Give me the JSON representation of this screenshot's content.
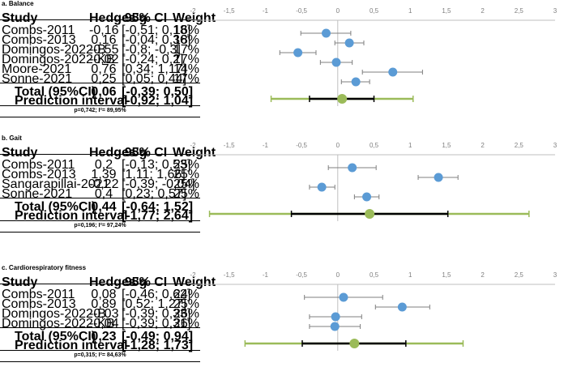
{
  "colors": {
    "study_marker": "#5b9bd5",
    "pooled_marker": "#9bbb59",
    "prediction_line": "#9bbb59",
    "ci_line": "#7f7f7f",
    "pooled_ci_line": "#000000"
  },
  "columns": {
    "study": "Study",
    "hedges": "Hedges'g",
    "ci": "95% CI",
    "weight": "Weight"
  },
  "chart_data": [
    {
      "type": "forest",
      "title": "a. Balance",
      "xlim": [
        -2,
        3
      ],
      "xticks": [
        "-2",
        "-1,5",
        "-1",
        "-0,5",
        "0",
        "0,5",
        "1",
        "1,5",
        "2",
        "2,5",
        "3"
      ],
      "studies": [
        {
          "name": "Combs-2011",
          "g": -0.16,
          "lo": -0.51,
          "hi": 0.18,
          "g_label": "-0,16",
          "ci_label": "[-0,51; 0,18]",
          "weight": "16%"
        },
        {
          "name": "Combs-2013",
          "g": 0.16,
          "lo": -0.04,
          "hi": 0.36,
          "g_label": "0,16",
          "ci_label": "[-0,04; 0,36]",
          "weight": "18%"
        },
        {
          "name": "Domingos-2022-B",
          "g": -0.55,
          "lo": -0.8,
          "hi": -0.3,
          "g_label": "-0,55",
          "ci_label": "[-0,8; -0,3]",
          "weight": "17%"
        },
        {
          "name": "Domingos-2022-KB",
          "g": -0.02,
          "lo": -0.24,
          "hi": 0.2,
          "g_label": "-0,02",
          "ci_label": "[-0,24; 0,2]",
          "weight": "17%"
        },
        {
          "name": "Moore-2021",
          "g": 0.76,
          "lo": 0.34,
          "hi": 1.17,
          "g_label": "0,76",
          "ci_label": "[0,34; 1,17]",
          "weight": "14%"
        },
        {
          "name": "Sonne-2021",
          "g": 0.25,
          "lo": 0.05,
          "hi": 0.44,
          "g_label": "0,25",
          "ci_label": "[0,05; 0,44]",
          "weight": "17%"
        }
      ],
      "total": {
        "label": "Total (95%CI)",
        "g": 0.06,
        "lo": -0.39,
        "hi": 0.5,
        "g_label": "0,06",
        "ci_label": "[-0,39; 0,50]"
      },
      "prediction": {
        "label": "Prediction interval",
        "lo": -0.92,
        "hi": 1.04,
        "ci_label": "[-0,92; 1,04]"
      },
      "heterogeneity": "p=0,742; I²= 89,95%"
    },
    {
      "type": "forest",
      "title": "b. Gait",
      "xlim": [
        -2,
        3
      ],
      "xticks": [
        "-2",
        "-1,5",
        "-1",
        "-0,5",
        "0",
        "0,5",
        "1",
        "1,5",
        "2",
        "2,5",
        "3"
      ],
      "studies": [
        {
          "name": "Combs-2011",
          "g": 0.2,
          "lo": -0.13,
          "hi": 0.53,
          "g_label": "0,2",
          "ci_label": "[-0,13; 0,53]",
          "weight": "25%"
        },
        {
          "name": "Combs-2013",
          "g": 1.39,
          "lo": 1.11,
          "hi": 1.66,
          "g_label": "1,39",
          "ci_label": "[1,11; 1,66]",
          "weight": "25%"
        },
        {
          "name": "Sangarapillai-2021",
          "g": -0.22,
          "lo": -0.39,
          "hi": -0.04,
          "g_label": "-0,22",
          "ci_label": "[-0,39; -0,04]",
          "weight": "25%"
        },
        {
          "name": "Sonne-2021",
          "g": 0.4,
          "lo": 0.23,
          "hi": 0.57,
          "g_label": "0,4",
          "ci_label": "[0,23; 0,57]",
          "weight": "25%"
        }
      ],
      "total": {
        "label": "Total (95%CI)",
        "g": 0.44,
        "lo": -0.64,
        "hi": 1.52,
        "g_label": "0,44",
        "ci_label": "[-0,64; 1,52]"
      },
      "prediction": {
        "label": "Prediction interval",
        "lo": -1.77,
        "hi": 2.64,
        "ci_label": "[-1,77; 2,64]"
      },
      "heterogeneity": "p=0,196; I²= 97,24%"
    },
    {
      "type": "forest",
      "title": "c. Cardiorespiratory fitness",
      "xlim": [
        -2,
        3
      ],
      "xticks": [
        "-2",
        "-1,5",
        "-1",
        "-0,5",
        "0",
        "0,5",
        "1",
        "1,5",
        "2",
        "2,5",
        "3"
      ],
      "studies": [
        {
          "name": "Combs-2011",
          "g": 0.08,
          "lo": -0.46,
          "hi": 0.62,
          "g_label": "0,08",
          "ci_label": "[-0,46; 0,62]",
          "weight": "24%"
        },
        {
          "name": "Combs-2013",
          "g": 0.89,
          "lo": 0.52,
          "hi": 1.27,
          "g_label": "0,89",
          "ci_label": "[0,52; 1,27]",
          "weight": "25%"
        },
        {
          "name": "Domingos-2022-B",
          "g": -0.03,
          "lo": -0.39,
          "hi": 0.33,
          "g_label": "-0,03",
          "ci_label": "[-0,39; 0,33]",
          "weight": "26%"
        },
        {
          "name": "Domingos-2022-KB",
          "g": -0.04,
          "lo": -0.39,
          "hi": 0.31,
          "g_label": "-0,04",
          "ci_label": "[-0,39; 0,31]",
          "weight": "26%"
        }
      ],
      "total": {
        "label": "Total (95%CI)",
        "g": 0.23,
        "lo": -0.49,
        "hi": 0.94,
        "g_label": "0,23",
        "ci_label": "[-0,49; 0,94]"
      },
      "prediction": {
        "label": "Prediction interval",
        "lo": -1.28,
        "hi": 1.73,
        "ci_label": "[-1,28; 1,73]"
      },
      "heterogeneity": "p=0,315; I²= 84,63%"
    }
  ]
}
